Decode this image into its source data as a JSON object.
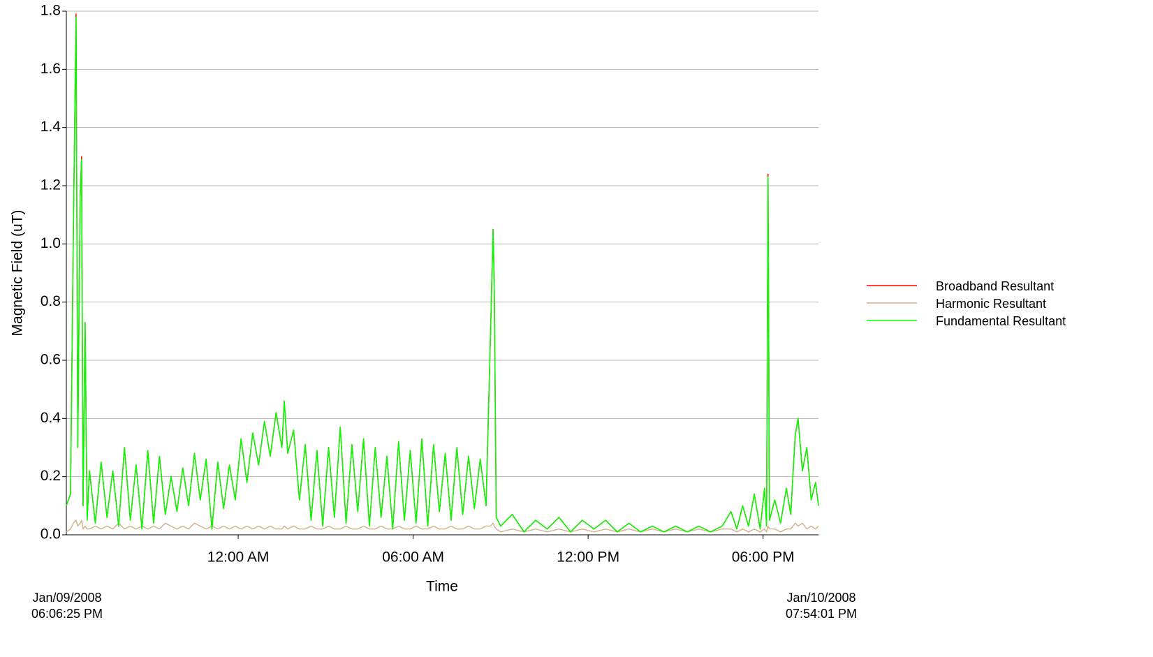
{
  "chart_data": {
    "type": "line",
    "y_label": "Magnetic Field (uT)",
    "x_label": "Time",
    "start_label": [
      "Jan/09/2008",
      "06:06:25 PM"
    ],
    "end_label": [
      "Jan/10/2008",
      "07:54:01 PM"
    ],
    "xlim": [
      18.107,
      43.9
    ],
    "xticks": [
      {
        "value": 24,
        "label": "12:00 AM"
      },
      {
        "value": 30,
        "label": "06:00 AM"
      },
      {
        "value": 36,
        "label": "12:00 PM"
      },
      {
        "value": 42,
        "label": "06:00 PM"
      }
    ],
    "ylim": [
      0,
      1.8
    ],
    "yticks": [
      {
        "value": 0,
        "label": "0.0"
      },
      0.2,
      0.4,
      0.6,
      0.8,
      {
        "value": 1,
        "label": "1.0"
      },
      1.2,
      1.4,
      1.6,
      1.8
    ],
    "grid": true,
    "legend": "right",
    "x": [
      18.107,
      18.25,
      18.35,
      18.44,
      18.5,
      18.58,
      18.63,
      18.68,
      18.75,
      18.82,
      18.9,
      19.1,
      19.3,
      19.5,
      19.7,
      19.9,
      20.1,
      20.3,
      20.5,
      20.7,
      20.9,
      21.1,
      21.3,
      21.5,
      21.7,
      21.9,
      22.1,
      22.3,
      22.5,
      22.7,
      22.9,
      23.1,
      23.3,
      23.5,
      23.7,
      23.9,
      24.1,
      24.3,
      24.5,
      24.7,
      24.9,
      25.1,
      25.3,
      25.5,
      25.58,
      25.7,
      25.9,
      26.1,
      26.3,
      26.5,
      26.7,
      26.9,
      27.1,
      27.3,
      27.5,
      27.7,
      27.9,
      28.1,
      28.3,
      28.5,
      28.7,
      28.9,
      29.1,
      29.3,
      29.5,
      29.7,
      29.9,
      30.1,
      30.3,
      30.5,
      30.7,
      30.9,
      31.1,
      31.3,
      31.5,
      31.7,
      31.9,
      32.1,
      32.3,
      32.5,
      32.65,
      32.74,
      32.78,
      32.85,
      33,
      33.4,
      33.8,
      34.2,
      34.6,
      35,
      35.4,
      35.8,
      36.2,
      36.6,
      37,
      37.4,
      37.8,
      38.2,
      38.6,
      39,
      39.4,
      39.8,
      40.2,
      40.6,
      40.9,
      41.1,
      41.3,
      41.5,
      41.7,
      41.9,
      42.05,
      42.12,
      42.17,
      42.22,
      42.4,
      42.6,
      42.8,
      42.95,
      43.1,
      43.2,
      43.35,
      43.5,
      43.65,
      43.8,
      43.9
    ],
    "series": [
      {
        "name": "Broadband Resultant",
        "color": "#ff0000",
        "values": [
          0.1,
          0.14,
          1.07,
          1.79,
          0.3,
          1.16,
          1.3,
          0.1,
          0.73,
          0.05,
          0.22,
          0.04,
          0.25,
          0.06,
          0.22,
          0.03,
          0.3,
          0.05,
          0.24,
          0.02,
          0.29,
          0.04,
          0.27,
          0.07,
          0.2,
          0.08,
          0.23,
          0.1,
          0.28,
          0.12,
          0.26,
          0.02,
          0.25,
          0.09,
          0.24,
          0.12,
          0.33,
          0.18,
          0.35,
          0.24,
          0.39,
          0.27,
          0.42,
          0.3,
          0.46,
          0.28,
          0.36,
          0.12,
          0.31,
          0.05,
          0.29,
          0.03,
          0.3,
          0.06,
          0.37,
          0.04,
          0.31,
          0.08,
          0.33,
          0.03,
          0.3,
          0.06,
          0.27,
          0.02,
          0.32,
          0.05,
          0.29,
          0.04,
          0.33,
          0.03,
          0.31,
          0.08,
          0.28,
          0.05,
          0.3,
          0.07,
          0.27,
          0.09,
          0.26,
          0.1,
          0.68,
          1.05,
          0.87,
          0.06,
          0.03,
          0.07,
          0.01,
          0.05,
          0.02,
          0.06,
          0.01,
          0.05,
          0.02,
          0.05,
          0.01,
          0.04,
          0.01,
          0.03,
          0.01,
          0.03,
          0.01,
          0.03,
          0.01,
          0.03,
          0.08,
          0.02,
          0.1,
          0.03,
          0.14,
          0.02,
          0.16,
          0.03,
          1.24,
          0.05,
          0.12,
          0.04,
          0.16,
          0.07,
          0.34,
          0.4,
          0.22,
          0.3,
          0.12,
          0.18,
          0.1
        ]
      },
      {
        "name": "Harmonic Resultant",
        "color": "#d2b48c",
        "values": [
          0.01,
          0.02,
          0.04,
          0.05,
          0.03,
          0.04,
          0.05,
          0.02,
          0.03,
          0.02,
          0.02,
          0.03,
          0.02,
          0.03,
          0.02,
          0.04,
          0.02,
          0.03,
          0.02,
          0.03,
          0.02,
          0.03,
          0.02,
          0.04,
          0.03,
          0.02,
          0.03,
          0.02,
          0.04,
          0.03,
          0.02,
          0.03,
          0.02,
          0.03,
          0.02,
          0.03,
          0.02,
          0.03,
          0.02,
          0.03,
          0.02,
          0.03,
          0.02,
          0.02,
          0.03,
          0.02,
          0.03,
          0.02,
          0.02,
          0.03,
          0.02,
          0.02,
          0.03,
          0.02,
          0.02,
          0.03,
          0.02,
          0.02,
          0.03,
          0.02,
          0.02,
          0.03,
          0.02,
          0.02,
          0.03,
          0.02,
          0.02,
          0.03,
          0.02,
          0.02,
          0.03,
          0.02,
          0.02,
          0.03,
          0.02,
          0.02,
          0.03,
          0.02,
          0.02,
          0.03,
          0.03,
          0.04,
          0.03,
          0.02,
          0.01,
          0.02,
          0.01,
          0.02,
          0.01,
          0.02,
          0.01,
          0.02,
          0.01,
          0.02,
          0.01,
          0.02,
          0.01,
          0.02,
          0.01,
          0.02,
          0.01,
          0.02,
          0.01,
          0.02,
          0.02,
          0.01,
          0.02,
          0.01,
          0.02,
          0.01,
          0.02,
          0.01,
          0.03,
          0.02,
          0.02,
          0.01,
          0.02,
          0.02,
          0.04,
          0.03,
          0.04,
          0.02,
          0.03,
          0.02,
          0.03
        ]
      },
      {
        "name": "Fundamental Resultant",
        "color": "#00ff00",
        "values": [
          0.1,
          0.14,
          1.07,
          1.78,
          0.3,
          1.16,
          1.29,
          0.1,
          0.73,
          0.05,
          0.22,
          0.04,
          0.25,
          0.06,
          0.22,
          0.03,
          0.3,
          0.05,
          0.24,
          0.02,
          0.29,
          0.04,
          0.27,
          0.07,
          0.2,
          0.08,
          0.23,
          0.1,
          0.28,
          0.12,
          0.26,
          0.02,
          0.25,
          0.09,
          0.24,
          0.12,
          0.33,
          0.18,
          0.35,
          0.24,
          0.39,
          0.27,
          0.42,
          0.3,
          0.46,
          0.28,
          0.36,
          0.12,
          0.31,
          0.05,
          0.29,
          0.03,
          0.3,
          0.06,
          0.37,
          0.04,
          0.31,
          0.08,
          0.33,
          0.03,
          0.3,
          0.06,
          0.27,
          0.02,
          0.32,
          0.05,
          0.29,
          0.04,
          0.33,
          0.03,
          0.31,
          0.08,
          0.28,
          0.05,
          0.3,
          0.07,
          0.27,
          0.09,
          0.26,
          0.1,
          0.68,
          1.05,
          0.87,
          0.06,
          0.03,
          0.07,
          0.01,
          0.05,
          0.02,
          0.06,
          0.01,
          0.05,
          0.02,
          0.05,
          0.01,
          0.04,
          0.01,
          0.03,
          0.01,
          0.03,
          0.01,
          0.03,
          0.01,
          0.03,
          0.08,
          0.02,
          0.1,
          0.03,
          0.14,
          0.02,
          0.16,
          0.03,
          1.23,
          0.05,
          0.12,
          0.04,
          0.16,
          0.07,
          0.34,
          0.4,
          0.22,
          0.3,
          0.12,
          0.18,
          0.1
        ]
      }
    ]
  }
}
